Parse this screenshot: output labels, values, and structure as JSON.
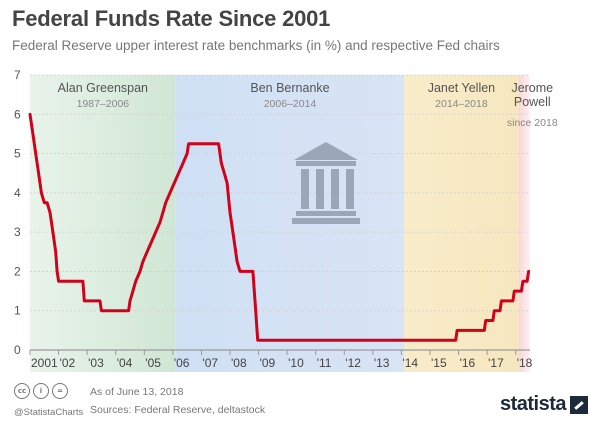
{
  "header": {
    "title": "Federal Funds Rate Since 2001",
    "subtitle": "Federal Reserve upper interest rate benchmarks (in %) and respective Fed chairs"
  },
  "footer": {
    "cc_icons": [
      "cc",
      "i",
      "="
    ],
    "handle": "@StatistaCharts",
    "date_note": "As of June 13, 2018",
    "sources": "Sources: Federal Reserve, deltastock",
    "brand": "statista"
  },
  "icon": "bank-building-icon",
  "colors": {
    "line": "#d0021b",
    "greenspan": "#d8eadb",
    "bernanke": "#d6e2f3",
    "yellen": "#f8ebc8",
    "powell": "#f9d9da",
    "icon": "#9aa7b8",
    "grid": "#d0d0d0"
  },
  "chart_data": {
    "type": "line",
    "title": "Federal Funds Rate Since 2001",
    "xlabel": "",
    "ylabel": "",
    "xlim": [
      2001,
      2018.5
    ],
    "ylim": [
      0,
      7
    ],
    "y_ticks": [
      0,
      1,
      2,
      3,
      4,
      5,
      6,
      7
    ],
    "x_ticks": [
      {
        "x": 2001,
        "label": "2001"
      },
      {
        "x": 2002,
        "label": "'02"
      },
      {
        "x": 2003,
        "label": "'03"
      },
      {
        "x": 2004,
        "label": "'04"
      },
      {
        "x": 2005,
        "label": "'05"
      },
      {
        "x": 2006,
        "label": "'06"
      },
      {
        "x": 2007,
        "label": "'07"
      },
      {
        "x": 2008,
        "label": "'08"
      },
      {
        "x": 2009,
        "label": "'09"
      },
      {
        "x": 2010,
        "label": "'10"
      },
      {
        "x": 2011,
        "label": "'11"
      },
      {
        "x": 2012,
        "label": "'12"
      },
      {
        "x": 2013,
        "label": "'13"
      },
      {
        "x": 2014,
        "label": "'14"
      },
      {
        "x": 2015,
        "label": "'15"
      },
      {
        "x": 2016,
        "label": "'16"
      },
      {
        "x": 2017,
        "label": "'17"
      },
      {
        "x": 2018,
        "label": "'18"
      }
    ],
    "grid": true,
    "series": [
      {
        "points": [
          [
            2001.0,
            6.0
          ],
          [
            2001.1,
            5.5
          ],
          [
            2001.2,
            5.0
          ],
          [
            2001.3,
            4.5
          ],
          [
            2001.4,
            4.0
          ],
          [
            2001.5,
            3.75
          ],
          [
            2001.6,
            3.75
          ],
          [
            2001.7,
            3.5
          ],
          [
            2001.8,
            3.0
          ],
          [
            2001.9,
            2.5
          ],
          [
            2001.95,
            2.0
          ],
          [
            2002.0,
            1.75
          ],
          [
            2002.85,
            1.75
          ],
          [
            2002.9,
            1.25
          ],
          [
            2003.45,
            1.25
          ],
          [
            2003.5,
            1.0
          ],
          [
            2004.45,
            1.0
          ],
          [
            2004.5,
            1.25
          ],
          [
            2004.6,
            1.5
          ],
          [
            2004.7,
            1.75
          ],
          [
            2004.85,
            2.0
          ],
          [
            2004.95,
            2.25
          ],
          [
            2005.1,
            2.5
          ],
          [
            2005.25,
            2.75
          ],
          [
            2005.4,
            3.0
          ],
          [
            2005.55,
            3.25
          ],
          [
            2005.65,
            3.5
          ],
          [
            2005.75,
            3.75
          ],
          [
            2005.9,
            4.0
          ],
          [
            2006.05,
            4.25
          ],
          [
            2006.2,
            4.5
          ],
          [
            2006.35,
            4.75
          ],
          [
            2006.5,
            5.0
          ],
          [
            2006.55,
            5.25
          ],
          [
            2007.6,
            5.25
          ],
          [
            2007.7,
            4.75
          ],
          [
            2007.8,
            4.5
          ],
          [
            2007.9,
            4.25
          ],
          [
            2008.0,
            3.5
          ],
          [
            2008.1,
            3.0
          ],
          [
            2008.25,
            2.25
          ],
          [
            2008.35,
            2.0
          ],
          [
            2008.8,
            2.0
          ],
          [
            2008.85,
            1.5
          ],
          [
            2008.9,
            1.0
          ],
          [
            2008.97,
            0.25
          ],
          [
            2015.9,
            0.25
          ],
          [
            2015.95,
            0.5
          ],
          [
            2016.9,
            0.5
          ],
          [
            2016.95,
            0.75
          ],
          [
            2017.2,
            0.75
          ],
          [
            2017.25,
            1.0
          ],
          [
            2017.45,
            1.0
          ],
          [
            2017.5,
            1.25
          ],
          [
            2017.9,
            1.25
          ],
          [
            2017.95,
            1.5
          ],
          [
            2018.2,
            1.5
          ],
          [
            2018.25,
            1.75
          ],
          [
            2018.4,
            1.75
          ],
          [
            2018.45,
            2.0
          ]
        ]
      }
    ],
    "eras": [
      {
        "name": "Alan Greenspan",
        "years": "1987–2006",
        "start": 2001.0,
        "end": 2006.1,
        "color_key": "greenspan"
      },
      {
        "name": "Ben Bernanke",
        "years": "2006–2014",
        "start": 2006.1,
        "end": 2014.1,
        "color_key": "bernanke"
      },
      {
        "name": "Janet Yellen",
        "years": "2014–2018",
        "start": 2014.1,
        "end": 2018.1,
        "color_key": "yellen"
      },
      {
        "name_lines": [
          "Jerome",
          "Powell"
        ],
        "years": "since 2018",
        "start": 2018.1,
        "end": 2018.5,
        "color_key": "powell"
      }
    ]
  }
}
